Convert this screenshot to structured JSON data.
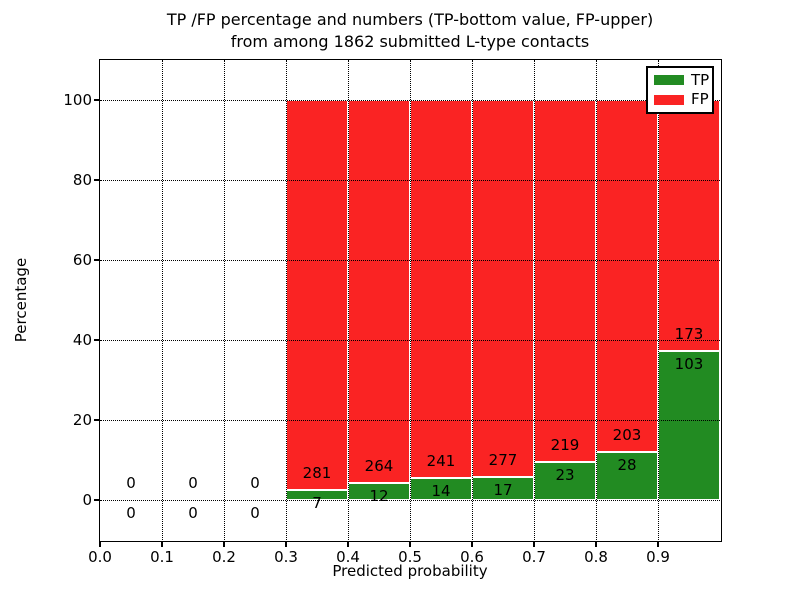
{
  "figure": {
    "title_line1": "TP /FP percentage and numbers (TP-bottom value, FP-upper)",
    "title_line2": "from among 1862 submitted L-type contacts"
  },
  "chart_data": {
    "type": "bar",
    "subtype": "stacked-percentage-histogram",
    "title": "TP /FP percentage and numbers (TP-bottom value, FP-upper) from among 1862 submitted L-type contacts",
    "xlabel": "Predicted probability",
    "ylabel": "Percentage",
    "xlim": [
      0.0,
      1.0
    ],
    "ylim": [
      -10,
      110
    ],
    "x_tick_labels": [
      "0.0",
      "0.1",
      "0.2",
      "0.3",
      "0.4",
      "0.5",
      "0.6",
      "0.7",
      "0.8",
      "0.9"
    ],
    "y_tick_labels": [
      "0",
      "20",
      "40",
      "60",
      "80",
      "100"
    ],
    "grid": "dotted black, drawn above bars",
    "legend": {
      "position": "upper-right",
      "entries": [
        {
          "label": "TP",
          "color": "#228b22"
        },
        {
          "label": "FP",
          "color": "#fa2323"
        }
      ]
    },
    "total_contacts": 1862,
    "bin_width": 0.1,
    "bins": [
      {
        "x_start": 0.0,
        "tp": 0,
        "fp": 0
      },
      {
        "x_start": 0.1,
        "tp": 0,
        "fp": 0
      },
      {
        "x_start": 0.2,
        "tp": 0,
        "fp": 0
      },
      {
        "x_start": 0.3,
        "tp": 7,
        "fp": 281
      },
      {
        "x_start": 0.4,
        "tp": 12,
        "fp": 264
      },
      {
        "x_start": 0.5,
        "tp": 14,
        "fp": 241
      },
      {
        "x_start": 0.6,
        "tp": 17,
        "fp": 277
      },
      {
        "x_start": 0.7,
        "tp": 23,
        "fp": 219
      },
      {
        "x_start": 0.8,
        "tp": 28,
        "fp": 203
      },
      {
        "x_start": 0.9,
        "tp": 103,
        "fp": 173
      }
    ],
    "colors": {
      "tp": "#228b22",
      "fp": "#fa2323",
      "bar_edge": "#ffffff",
      "grid": "#000000",
      "frame": "#000000",
      "background": "#ffffff"
    }
  }
}
